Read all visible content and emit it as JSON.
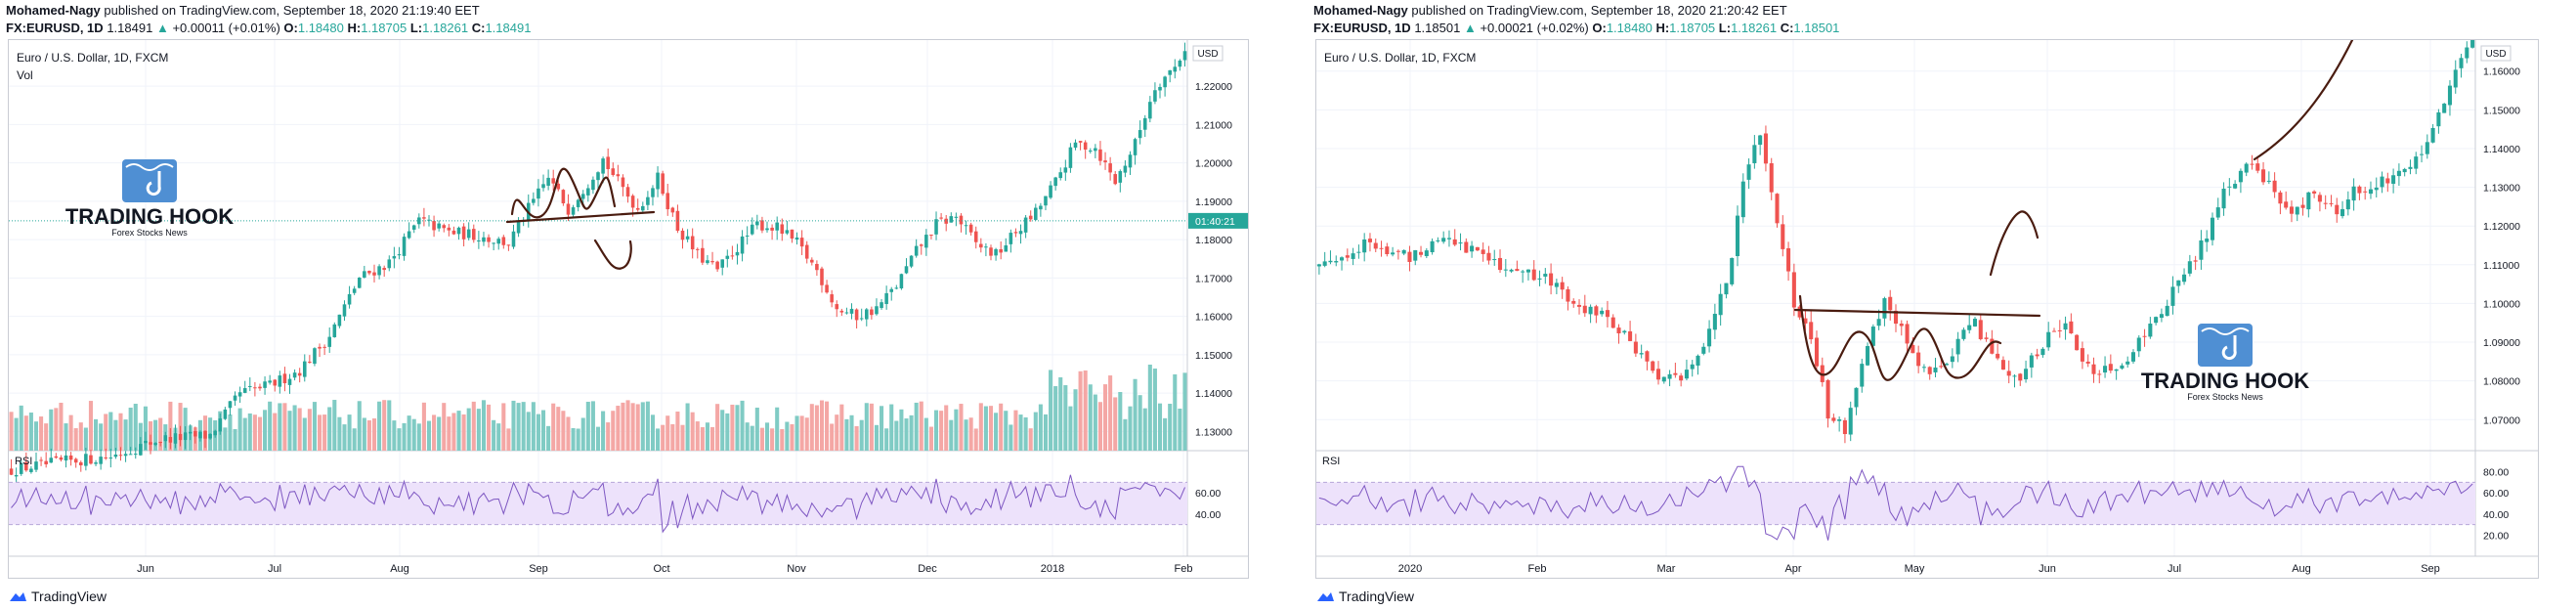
{
  "colors": {
    "up": "#26a69a",
    "down": "#ef5350",
    "vol_up": "#80cbc4",
    "vol_down": "#f4a7a5",
    "rsi": "#7e57c2",
    "rsi_band": "#ede2fb",
    "drawing": "#4a1c10",
    "price_tag": "#26a69a"
  },
  "brand": {
    "name": "TradingView",
    "logo_icon": "tradingview-cloud-icon"
  },
  "watermark": {
    "title": "TRADING HOOK",
    "subtitle": "Forex Stocks News",
    "icon": "hook-chart-logo-icon"
  },
  "panels": [
    {
      "author": "Mohamed-Nagy",
      "published": " published on TradingView.com, September 18, 2020 21:19:40 EET",
      "symbol": "FX:EURUSD, 1D",
      "last": "1.18491",
      "change": "+0.00011 (+0.01%)",
      "O": "1.18480",
      "H": "1.18705",
      "L": "1.18261",
      "C": "1.18491",
      "instrument": "Euro / U.S. Dollar, 1D, FXCM",
      "vol_label": "Vol",
      "currency": "USD",
      "price_tag": "01:40:21",
      "rsi_label": "RSI",
      "rsi_ticks": [
        "60.00",
        "40.00"
      ],
      "x_labels": [
        "Jun",
        "Jul",
        "Aug",
        "Sep",
        "Oct",
        "Nov",
        "Dec",
        "2018",
        "Feb"
      ]
    },
    {
      "author": "Mohamed-Nagy",
      "published": " published on TradingView.com, September 18, 2020 21:20:42 EET",
      "symbol": "FX:EURUSD, 1D",
      "last": "1.18501",
      "change": "+0.00021 (+0.02%)",
      "O": "1.18480",
      "H": "1.18705",
      "L": "1.18261",
      "C": "1.18501",
      "instrument": "Euro / U.S. Dollar, 1D, FXCM",
      "vol_label": "",
      "currency": "USD",
      "price_tag": "",
      "rsi_label": "RSI",
      "rsi_ticks": [
        "80.00",
        "60.00",
        "40.00",
        "20.00"
      ],
      "x_labels": [
        "2020",
        "Feb",
        "Mar",
        "Apr",
        "May",
        "Jun",
        "Jul",
        "Aug",
        "Sep"
      ]
    }
  ],
  "chart_data": [
    {
      "type": "candlestick",
      "title": "Euro / U.S. Dollar, 1D, FXCM",
      "y_ticks": [
        1.13,
        1.14,
        1.15,
        1.16,
        1.17,
        1.18,
        1.19,
        1.2,
        1.21,
        1.22
      ],
      "ylim": [
        1.125,
        1.232
      ],
      "x_labels": [
        "Jun",
        "Jul",
        "Aug",
        "Sep",
        "Oct",
        "Nov",
        "Dec",
        "2018",
        "Feb"
      ],
      "close_path": [
        {
          "x": 0,
          "y": 1.12
        },
        {
          "x": 10,
          "y": 1.122
        },
        {
          "x": 20,
          "y": 1.1235
        },
        {
          "x": 30,
          "y": 1.128
        },
        {
          "x": 40,
          "y": 1.129
        },
        {
          "x": 46,
          "y": 1.14
        },
        {
          "x": 52,
          "y": 1.142
        },
        {
          "x": 58,
          "y": 1.146
        },
        {
          "x": 64,
          "y": 1.155
        },
        {
          "x": 70,
          "y": 1.17
        },
        {
          "x": 76,
          "y": 1.174
        },
        {
          "x": 82,
          "y": 1.185
        },
        {
          "x": 88,
          "y": 1.182
        },
        {
          "x": 94,
          "y": 1.181
        },
        {
          "x": 100,
          "y": 1.179
        },
        {
          "x": 104,
          "y": 1.188
        },
        {
          "x": 108,
          "y": 1.196
        },
        {
          "x": 112,
          "y": 1.188
        },
        {
          "x": 116,
          "y": 1.195
        },
        {
          "x": 119,
          "y": 1.201
        },
        {
          "x": 122,
          "y": 1.195
        },
        {
          "x": 126,
          "y": 1.188
        },
        {
          "x": 130,
          "y": 1.196
        },
        {
          "x": 134,
          "y": 1.183
        },
        {
          "x": 138,
          "y": 1.176
        },
        {
          "x": 142,
          "y": 1.172
        },
        {
          "x": 146,
          "y": 1.178
        },
        {
          "x": 150,
          "y": 1.184
        },
        {
          "x": 154,
          "y": 1.183
        },
        {
          "x": 158,
          "y": 1.179
        },
        {
          "x": 162,
          "y": 1.172
        },
        {
          "x": 166,
          "y": 1.162
        },
        {
          "x": 170,
          "y": 1.16
        },
        {
          "x": 174,
          "y": 1.162
        },
        {
          "x": 178,
          "y": 1.168
        },
        {
          "x": 182,
          "y": 1.177
        },
        {
          "x": 186,
          "y": 1.184
        },
        {
          "x": 190,
          "y": 1.186
        },
        {
          "x": 194,
          "y": 1.179
        },
        {
          "x": 198,
          "y": 1.176
        },
        {
          "x": 202,
          "y": 1.182
        },
        {
          "x": 206,
          "y": 1.187
        },
        {
          "x": 210,
          "y": 1.195
        },
        {
          "x": 214,
          "y": 1.205
        },
        {
          "x": 218,
          "y": 1.204
        },
        {
          "x": 222,
          "y": 1.195
        },
        {
          "x": 226,
          "y": 1.205
        },
        {
          "x": 230,
          "y": 1.22
        },
        {
          "x": 234,
          "y": 1.225
        },
        {
          "x": 236,
          "y": 1.23
        }
      ],
      "n_bars": 237
    },
    {
      "type": "candlestick",
      "title": "Euro / U.S. Dollar, 1D, FXCM",
      "y_ticks": [
        1.07,
        1.08,
        1.09,
        1.1,
        1.11,
        1.12,
        1.13,
        1.14,
        1.15,
        1.16
      ],
      "ylim": [
        1.062,
        1.168
      ],
      "x_labels": [
        "2020",
        "Feb",
        "Mar",
        "Apr",
        "May",
        "Jun",
        "Jul",
        "Aug",
        "Sep"
      ],
      "close_path": [
        {
          "x": 0,
          "y": 1.11
        },
        {
          "x": 8,
          "y": 1.115
        },
        {
          "x": 16,
          "y": 1.112
        },
        {
          "x": 22,
          "y": 1.118
        },
        {
          "x": 28,
          "y": 1.113
        },
        {
          "x": 34,
          "y": 1.109
        },
        {
          "x": 40,
          "y": 1.106
        },
        {
          "x": 46,
          "y": 1.1
        },
        {
          "x": 52,
          "y": 1.095
        },
        {
          "x": 56,
          "y": 1.088
        },
        {
          "x": 60,
          "y": 1.081
        },
        {
          "x": 64,
          "y": 1.08
        },
        {
          "x": 68,
          "y": 1.09
        },
        {
          "x": 72,
          "y": 1.105
        },
        {
          "x": 75,
          "y": 1.13
        },
        {
          "x": 78,
          "y": 1.145
        },
        {
          "x": 81,
          "y": 1.12
        },
        {
          "x": 84,
          "y": 1.1
        },
        {
          "x": 87,
          "y": 1.09
        },
        {
          "x": 90,
          "y": 1.072
        },
        {
          "x": 93,
          "y": 1.068
        },
        {
          "x": 96,
          "y": 1.085
        },
        {
          "x": 100,
          "y": 1.1
        },
        {
          "x": 104,
          "y": 1.09
        },
        {
          "x": 108,
          "y": 1.08
        },
        {
          "x": 112,
          "y": 1.088
        },
        {
          "x": 116,
          "y": 1.095
        },
        {
          "x": 120,
          "y": 1.085
        },
        {
          "x": 124,
          "y": 1.08
        },
        {
          "x": 128,
          "y": 1.09
        },
        {
          "x": 132,
          "y": 1.096
        },
        {
          "x": 136,
          "y": 1.083
        },
        {
          "x": 140,
          "y": 1.082
        },
        {
          "x": 144,
          "y": 1.088
        },
        {
          "x": 148,
          "y": 1.096
        },
        {
          "x": 152,
          "y": 1.105
        },
        {
          "x": 156,
          "y": 1.115
        },
        {
          "x": 160,
          "y": 1.128
        },
        {
          "x": 164,
          "y": 1.136
        },
        {
          "x": 168,
          "y": 1.13
        },
        {
          "x": 172,
          "y": 1.124
        },
        {
          "x": 176,
          "y": 1.128
        },
        {
          "x": 180,
          "y": 1.124
        },
        {
          "x": 184,
          "y": 1.13
        },
        {
          "x": 188,
          "y": 1.132
        },
        {
          "x": 192,
          "y": 1.135
        },
        {
          "x": 196,
          "y": 1.142
        },
        {
          "x": 200,
          "y": 1.155
        },
        {
          "x": 204,
          "y": 1.17
        }
      ],
      "n_bars": 205
    }
  ]
}
